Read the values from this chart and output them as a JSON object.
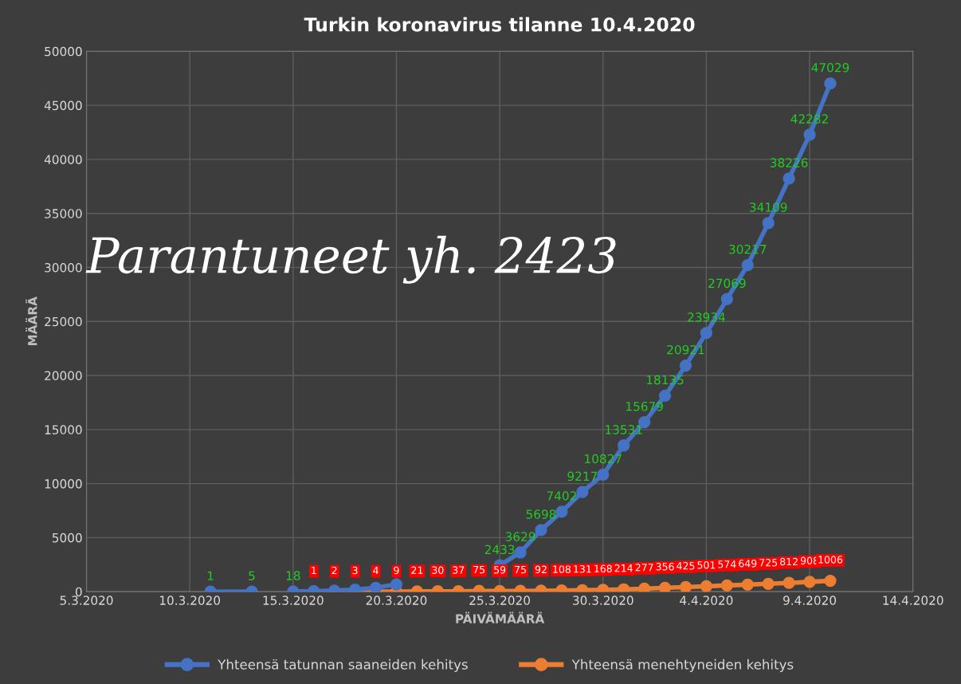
{
  "chart_data": {
    "type": "line",
    "title": "Turkin koronavirus tilanne 10.4.2020",
    "xlabel": "PÄIVÄMÄÄRÄ",
    "ylabel": "MÄÄRÄ",
    "annotations": [
      "Parantuneet yh. 2423"
    ],
    "series": [
      {
        "name": "Yhteensä tatunnan saaneiden kehitys",
        "color": "#4472c4",
        "x": [
          "2020-03-11",
          "2020-03-13",
          "2020-03-14",
          "2020-03-15",
          "2020-03-16",
          "2020-03-17",
          "2020-03-18",
          "2020-03-19",
          "2020-03-20",
          "2020-03-21",
          "2020-03-22",
          "2020-03-23",
          "2020-03-24",
          "2020-03-25",
          "2020-03-26",
          "2020-03-27",
          "2020-03-28",
          "2020-03-29",
          "2020-03-30",
          "2020-03-31",
          "2020-04-01",
          "2020-04-02",
          "2020-04-03",
          "2020-04-04",
          "2020-04-05",
          "2020-04-06",
          "2020-04-07",
          "2020-04-08",
          "2020-04-09",
          "2020-04-10"
        ],
        "values": [
          1,
          5,
          null,
          18,
          47,
          98,
          191,
          359,
          670,
          null,
          null,
          null,
          null,
          2433,
          3629,
          5698,
          7402,
          9217,
          10827,
          13531,
          15679,
          18135,
          20921,
          23934,
          27069,
          30217,
          34109,
          38226,
          42282,
          47029
        ],
        "value_labels": [
          "1",
          "5",
          null,
          "18",
          null,
          null,
          null,
          null,
          null,
          null,
          null,
          null,
          null,
          "2433",
          "3629",
          "5698",
          "7402",
          "9217",
          "10827",
          "13531",
          "15679",
          "18135",
          "20921",
          "23934",
          "27069",
          "30217",
          "34109",
          "38226",
          "42282",
          "47029"
        ]
      },
      {
        "name": "Yhteensä menehtyneiden kehitys",
        "color": "#ed7d31",
        "x": [
          "2020-03-16",
          "2020-03-17",
          "2020-03-18",
          "2020-03-19",
          "2020-03-20",
          "2020-03-21",
          "2020-03-22",
          "2020-03-23",
          "2020-03-24",
          "2020-03-25",
          "2020-03-26",
          "2020-03-27",
          "2020-03-28",
          "2020-03-29",
          "2020-03-30",
          "2020-03-31",
          "2020-04-01",
          "2020-04-02",
          "2020-04-03",
          "2020-04-04",
          "2020-04-05",
          "2020-04-06",
          "2020-04-07",
          "2020-04-08",
          "2020-04-09",
          "2020-04-10"
        ],
        "values": [
          1,
          2,
          3,
          4,
          9,
          21,
          30,
          37,
          75,
          59,
          75,
          92,
          108,
          131,
          168,
          214,
          277,
          356,
          425,
          501,
          574,
          649,
          725,
          812,
          908,
          1006
        ],
        "value_labels": [
          "1",
          "2",
          "3",
          "4",
          "9",
          "21",
          "30",
          "37",
          "75",
          "59",
          "75",
          "92",
          "108",
          "131",
          "168",
          "214",
          "277",
          "356",
          "425",
          "501",
          "574",
          "649",
          "725",
          "812",
          "908",
          "1006"
        ]
      }
    ],
    "marker": "circle",
    "line_style": "solid",
    "grid": true,
    "legend": "bottom",
    "xlim": [
      "2020-03-05",
      "2020-04-14"
    ],
    "xticks": [
      {
        "value": "2020-03-05",
        "label": "5.3.2020"
      },
      {
        "value": "2020-03-10",
        "label": "10.3.2020"
      },
      {
        "value": "2020-03-15",
        "label": "15.3.2020"
      },
      {
        "value": "2020-03-20",
        "label": "20.3.2020"
      },
      {
        "value": "2020-03-25",
        "label": "25.3.2020"
      },
      {
        "value": "2020-03-30",
        "label": "30.3.2020"
      },
      {
        "value": "2020-04-04",
        "label": "4.4.2020"
      },
      {
        "value": "2020-04-09",
        "label": "9.4.2020"
      },
      {
        "value": "2020-04-14",
        "label": "14.4.2020"
      }
    ],
    "ylim": [
      0,
      50000
    ],
    "yticks": [
      0,
      5000,
      10000,
      15000,
      20000,
      25000,
      30000,
      35000,
      40000,
      45000,
      50000
    ]
  }
}
